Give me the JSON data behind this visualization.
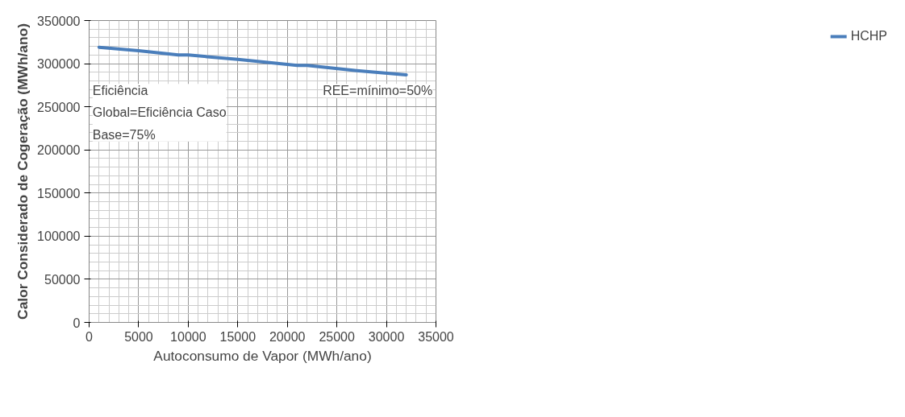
{
  "chart_data": {
    "type": "line",
    "xlabel": "Autoconsumo de Vapor (MWh/ano)",
    "ylabel": "Calor Considerado de Cogeração (MWh/ano)",
    "x": [
      1000,
      5000,
      9000,
      10000,
      15000,
      21000,
      22000,
      27000,
      32000
    ],
    "series": [
      {
        "name": "HCHP",
        "color": "#4a7ebb",
        "values": [
          319000,
          315000,
          310000,
          310000,
          305000,
          298000,
          298000,
          292000,
          287000
        ]
      }
    ],
    "xlim": [
      0,
      35000
    ],
    "xticks": [
      0,
      5000,
      10000,
      15000,
      20000,
      25000,
      30000,
      35000
    ],
    "ylim": [
      0,
      350000
    ],
    "yticks": [
      0,
      50000,
      100000,
      150000,
      200000,
      250000,
      300000,
      350000
    ],
    "grid": true,
    "legend": "right",
    "marker": "none",
    "line_style": "solid",
    "annotations": [
      "Eficiência\nGlobal=Eficiência Caso\nBase=75%",
      "REE=mínimo=50%"
    ]
  }
}
